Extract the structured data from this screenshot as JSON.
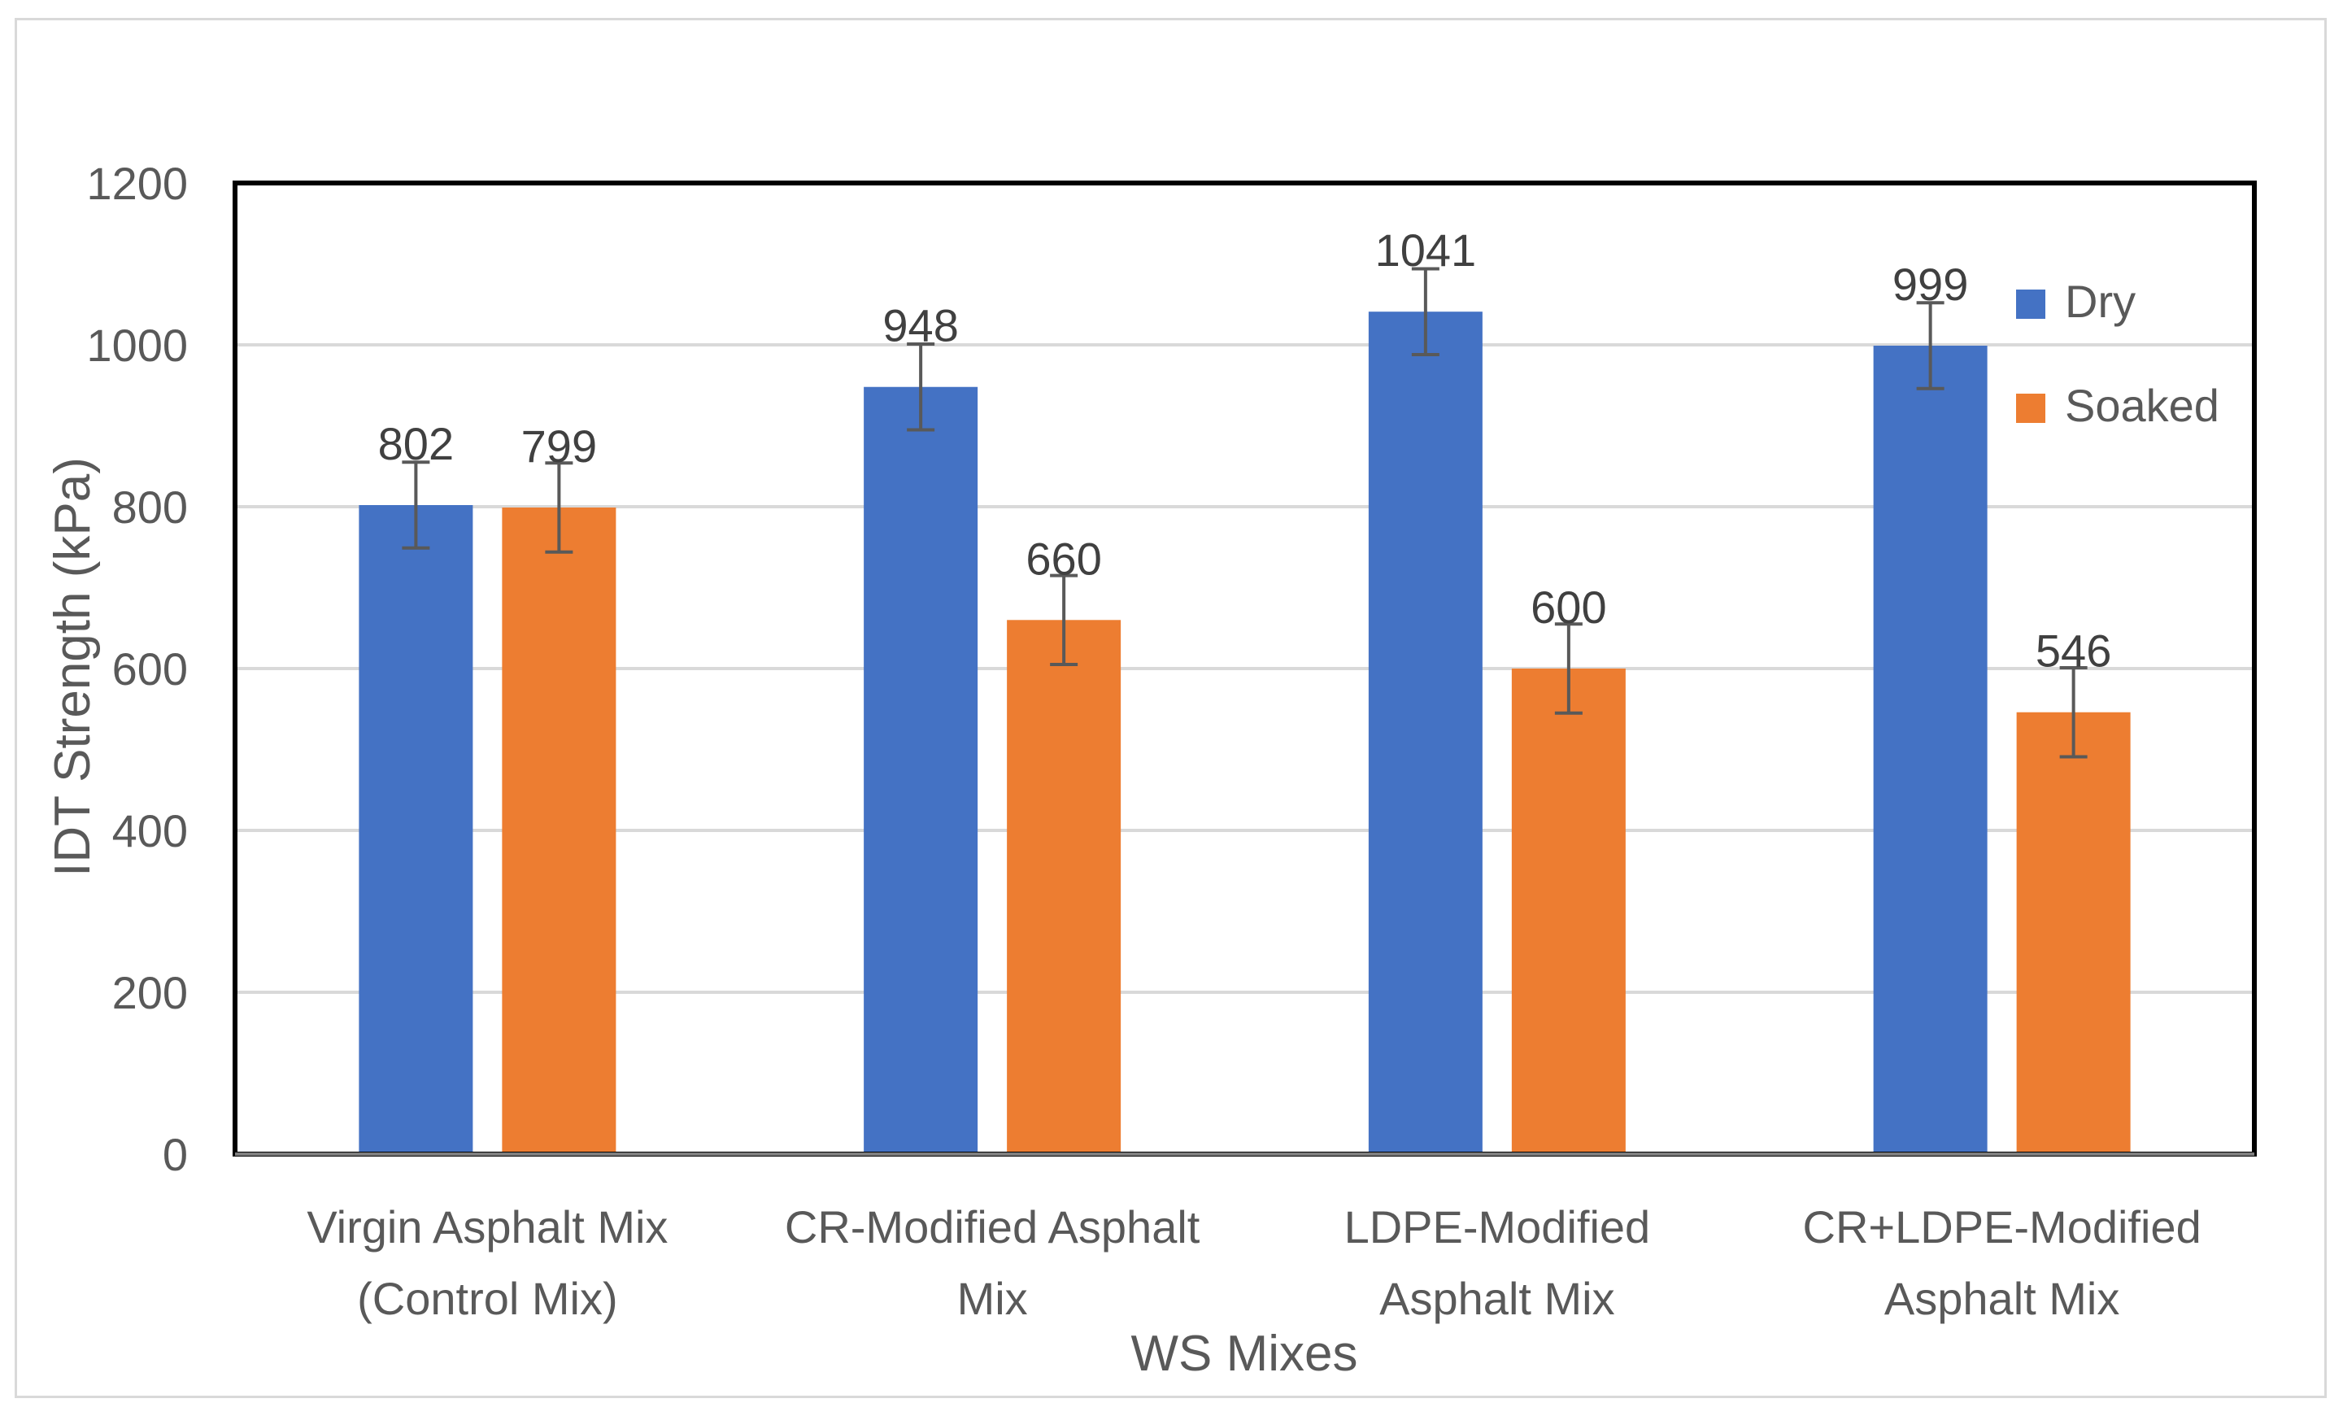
{
  "chart_data": {
    "type": "bar",
    "title": "",
    "xlabel": "WS Mixes",
    "ylabel": "IDT Strength (kPa)",
    "ylim": [
      0,
      1200
    ],
    "yticks": [
      0,
      200,
      400,
      600,
      800,
      1000,
      1200
    ],
    "ytick_labels": [
      "0",
      "200",
      "400",
      "600",
      "800",
      "1000",
      "1200"
    ],
    "grid": true,
    "legend_position": "top-right",
    "categories": [
      [
        "Virgin Asphalt Mix",
        "(Control Mix)"
      ],
      [
        "CR-Modified Asphalt",
        "Mix"
      ],
      [
        "LDPE-Modified",
        "Asphalt Mix"
      ],
      [
        "CR+LDPE-Modified",
        "Asphalt Mix"
      ]
    ],
    "series": [
      {
        "name": "Dry",
        "color": "#4472c4",
        "values": [
          802,
          948,
          1041,
          999
        ],
        "labels": [
          "802",
          "948",
          "1041",
          "999"
        ],
        "error": [
          53,
          53,
          53,
          53
        ]
      },
      {
        "name": "Soaked",
        "color": "#ed7d31",
        "values": [
          799,
          660,
          600,
          546
        ],
        "labels": [
          "799",
          "660",
          "600",
          "546"
        ],
        "error": [
          55,
          55,
          55,
          55
        ]
      }
    ]
  }
}
